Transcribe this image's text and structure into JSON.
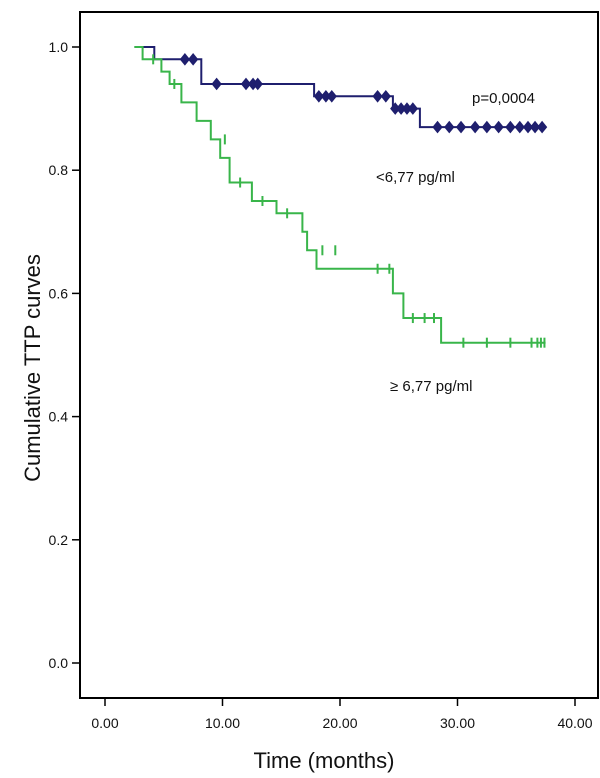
{
  "chart_data": {
    "type": "line",
    "xlabel": "Time (months)",
    "ylabel": "Cumulative TTP curves",
    "xlim": [
      0,
      40
    ],
    "ylim": [
      0,
      1.05
    ],
    "xticks": [
      "0.00",
      "10.00",
      "20.00",
      "30.00",
      "40.00"
    ],
    "yticks": [
      "0.0",
      "0.2",
      "0.4",
      "0.6",
      "0.8",
      "1.0"
    ],
    "grid": false,
    "annotations": {
      "p_value": "p=0,0004",
      "low_group": "<6,77 pg/ml",
      "high_group": "≥ 6,77 pg/ml"
    },
    "series": [
      {
        "color": "#1f1f6e",
        "step": [
          [
            2.5,
            1.0
          ],
          [
            4.2,
            1.0
          ],
          [
            4.2,
            0.98
          ],
          [
            8.2,
            0.98
          ],
          [
            8.2,
            0.94
          ],
          [
            17.8,
            0.94
          ],
          [
            17.8,
            0.92
          ],
          [
            24.5,
            0.92
          ],
          [
            24.5,
            0.9
          ],
          [
            26.8,
            0.9
          ],
          [
            26.8,
            0.87
          ],
          [
            37.5,
            0.87
          ]
        ],
        "censored": [
          [
            6.8,
            0.98
          ],
          [
            7.5,
            0.98
          ],
          [
            9.5,
            0.94
          ],
          [
            12.0,
            0.94
          ],
          [
            12.6,
            0.94
          ],
          [
            13.0,
            0.94
          ],
          [
            18.2,
            0.92
          ],
          [
            18.8,
            0.92
          ],
          [
            19.3,
            0.92
          ],
          [
            23.2,
            0.92
          ],
          [
            23.9,
            0.92
          ],
          [
            24.7,
            0.9
          ],
          [
            25.2,
            0.9
          ],
          [
            25.7,
            0.9
          ],
          [
            26.2,
            0.9
          ],
          [
            28.3,
            0.87
          ],
          [
            29.3,
            0.87
          ],
          [
            30.3,
            0.87
          ],
          [
            31.5,
            0.87
          ],
          [
            32.5,
            0.87
          ],
          [
            33.5,
            0.87
          ],
          [
            34.5,
            0.87
          ],
          [
            35.3,
            0.87
          ],
          [
            36.0,
            0.87
          ],
          [
            36.6,
            0.87
          ],
          [
            37.2,
            0.87
          ]
        ]
      },
      {
        "color": "#39b54a",
        "step": [
          [
            2.5,
            1.0
          ],
          [
            3.2,
            1.0
          ],
          [
            3.2,
            0.98
          ],
          [
            4.8,
            0.98
          ],
          [
            4.8,
            0.96
          ],
          [
            5.5,
            0.96
          ],
          [
            5.5,
            0.94
          ],
          [
            6.5,
            0.94
          ],
          [
            6.5,
            0.91
          ],
          [
            7.8,
            0.91
          ],
          [
            7.8,
            0.88
          ],
          [
            9.0,
            0.88
          ],
          [
            9.0,
            0.85
          ],
          [
            9.8,
            0.85
          ],
          [
            9.8,
            0.82
          ],
          [
            10.6,
            0.82
          ],
          [
            10.6,
            0.78
          ],
          [
            12.5,
            0.78
          ],
          [
            12.5,
            0.75
          ],
          [
            14.6,
            0.75
          ],
          [
            14.6,
            0.73
          ],
          [
            16.8,
            0.73
          ],
          [
            16.8,
            0.7
          ],
          [
            17.2,
            0.7
          ],
          [
            17.2,
            0.67
          ],
          [
            18.0,
            0.67
          ],
          [
            18.0,
            0.64
          ],
          [
            24.5,
            0.64
          ],
          [
            24.5,
            0.6
          ],
          [
            25.4,
            0.6
          ],
          [
            25.4,
            0.56
          ],
          [
            28.6,
            0.56
          ],
          [
            28.6,
            0.52
          ],
          [
            37.5,
            0.52
          ]
        ],
        "censored": [
          [
            4.1,
            0.98
          ],
          [
            5.9,
            0.94
          ],
          [
            10.2,
            0.85
          ],
          [
            11.5,
            0.78
          ],
          [
            13.4,
            0.75
          ],
          [
            15.5,
            0.73
          ],
          [
            18.5,
            0.67
          ],
          [
            19.6,
            0.67
          ],
          [
            23.2,
            0.64
          ],
          [
            24.2,
            0.64
          ],
          [
            26.2,
            0.56
          ],
          [
            27.2,
            0.56
          ],
          [
            28.0,
            0.56
          ],
          [
            30.5,
            0.52
          ],
          [
            32.5,
            0.52
          ],
          [
            34.5,
            0.52
          ],
          [
            36.3,
            0.52
          ],
          [
            36.8,
            0.52
          ],
          [
            37.1,
            0.52
          ],
          [
            37.4,
            0.52
          ]
        ]
      }
    ]
  }
}
